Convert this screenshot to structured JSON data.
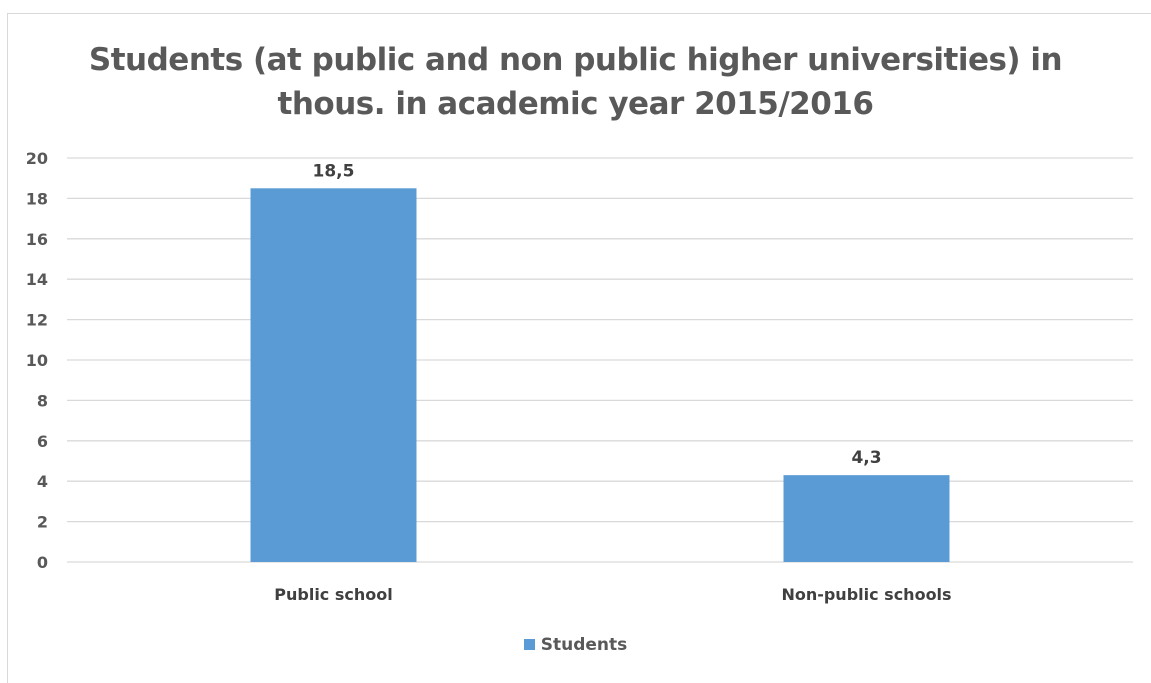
{
  "chart_data": {
    "type": "bar",
    "title": "Students (at public and non public higher universities) in thous. in academic year 2015/2016",
    "title_lines": [
      "Students (at public and non public higher universities) in",
      "thous. in academic year 2015/2016"
    ],
    "categories": [
      "Public school",
      "Non-public schools"
    ],
    "series": [
      {
        "name": "Students",
        "values": [
          18.5,
          4.3
        ],
        "value_labels": [
          "18,5",
          "4,3"
        ],
        "color": "#5b9bd5"
      }
    ],
    "ylim": [
      0,
      20
    ],
    "yticks": [
      0,
      2,
      4,
      6,
      8,
      10,
      12,
      14,
      16,
      18,
      20
    ],
    "ytick_labels": [
      "0",
      "2",
      "4",
      "6",
      "8",
      "10",
      "12",
      "14",
      "16",
      "18",
      "20"
    ],
    "grid": true,
    "legend_position": "bottom",
    "colors": {
      "gridline": "#d9d9d9",
      "axis_text": "#595959"
    }
  }
}
